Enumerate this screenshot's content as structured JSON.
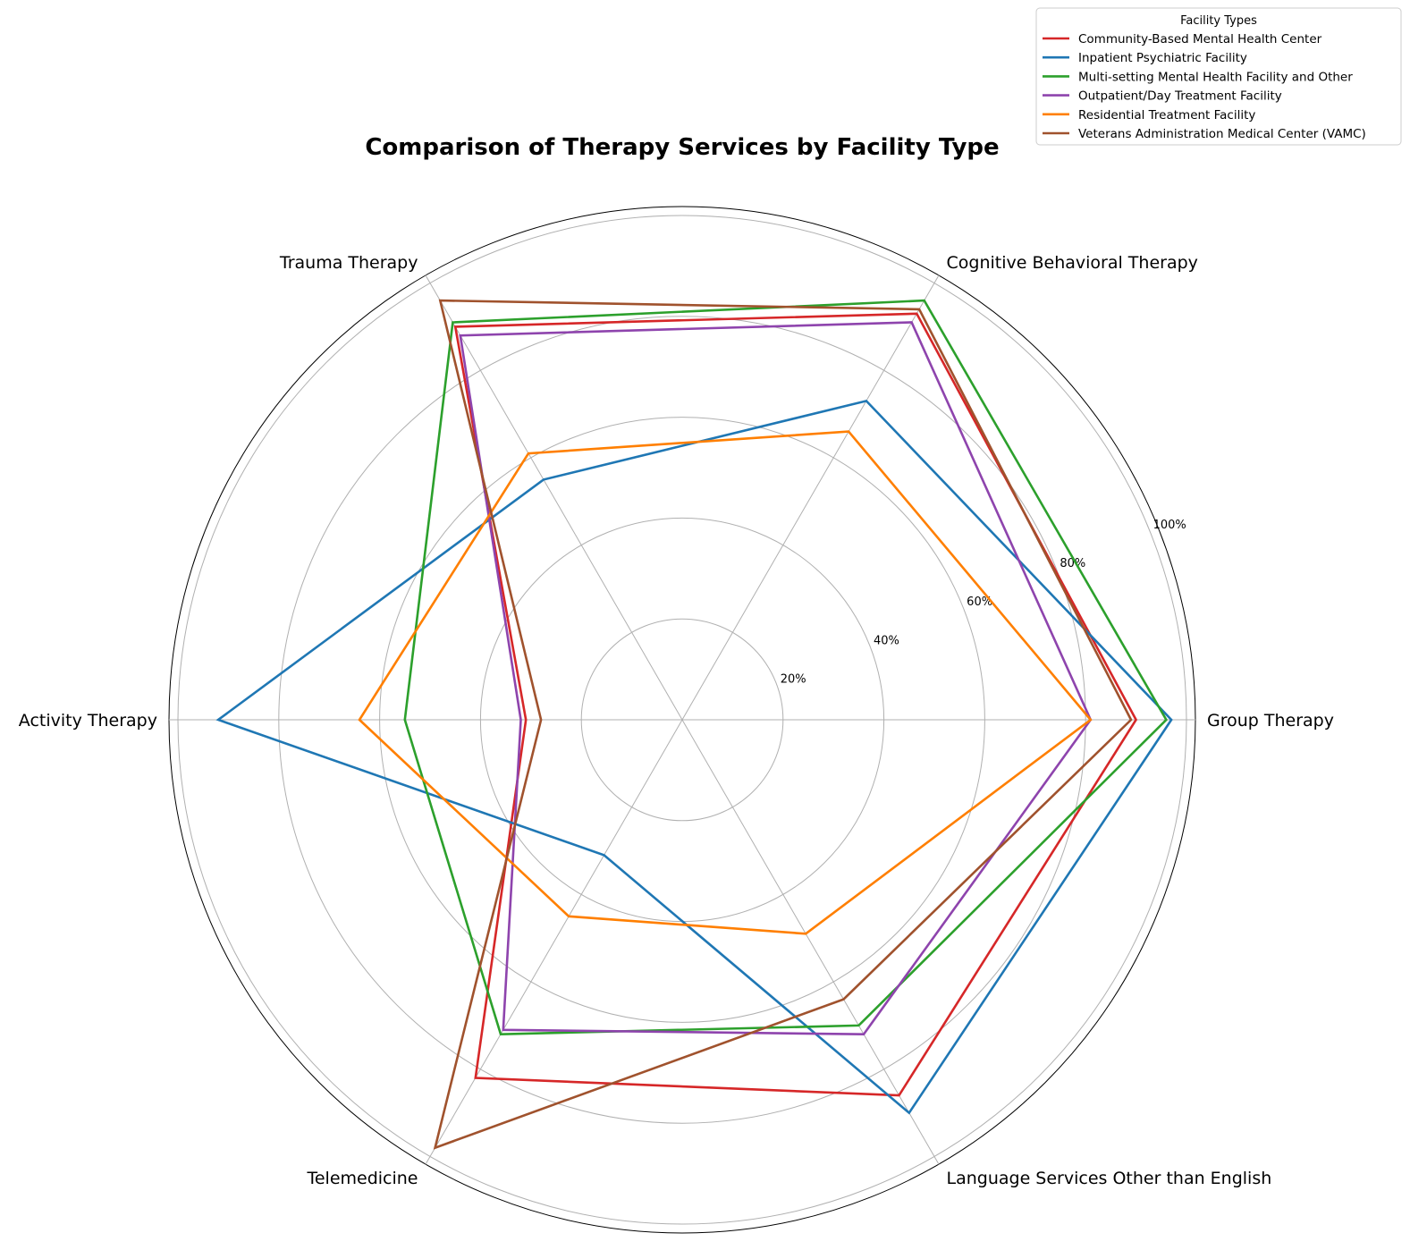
{
  "chart_data": {
    "type": "radar",
    "title": "Comparison of Therapy Services by Facility Type",
    "categories": [
      "Group Therapy",
      "Cognitive Behavioral Therapy",
      "Trauma Therapy",
      "Activity Therapy",
      "Telemedicine",
      "Language Services Other than English"
    ],
    "rlim": [
      0,
      100
    ],
    "r_ticks": [
      20,
      40,
      60,
      80,
      100
    ],
    "r_tick_labels": [
      "20%",
      "40%",
      "60%",
      "80%",
      "100%"
    ],
    "grid": true,
    "legend": {
      "title": "Facility Types",
      "placement": "upper-right"
    },
    "series": [
      {
        "name": "Community-Based Mental Health Center",
        "color": "#d62728",
        "values": [
          90,
          93,
          90,
          31,
          82,
          86
        ]
      },
      {
        "name": "Inpatient Psychiatric Facility",
        "color": "#1f77b4",
        "values": [
          97,
          73,
          55,
          92,
          31,
          90
        ]
      },
      {
        "name": "Multi-setting Mental Health Facility and Other",
        "color": "#2ca02c",
        "values": [
          96,
          96,
          91,
          55,
          72,
          70
        ]
      },
      {
        "name": "Outpatient/Day Treatment Facility",
        "color": "#8e44ad",
        "values": [
          81,
          91,
          88,
          32,
          71,
          72
        ]
      },
      {
        "name": "Residential Treatment Facility",
        "color": "#ff7f00",
        "values": [
          81,
          66,
          61,
          64,
          45,
          49
        ]
      },
      {
        "name": "Veterans Administration Medical Center (VAMC)",
        "color": "#a0522d",
        "values": [
          89,
          94,
          96,
          28,
          98,
          64
        ]
      }
    ]
  }
}
